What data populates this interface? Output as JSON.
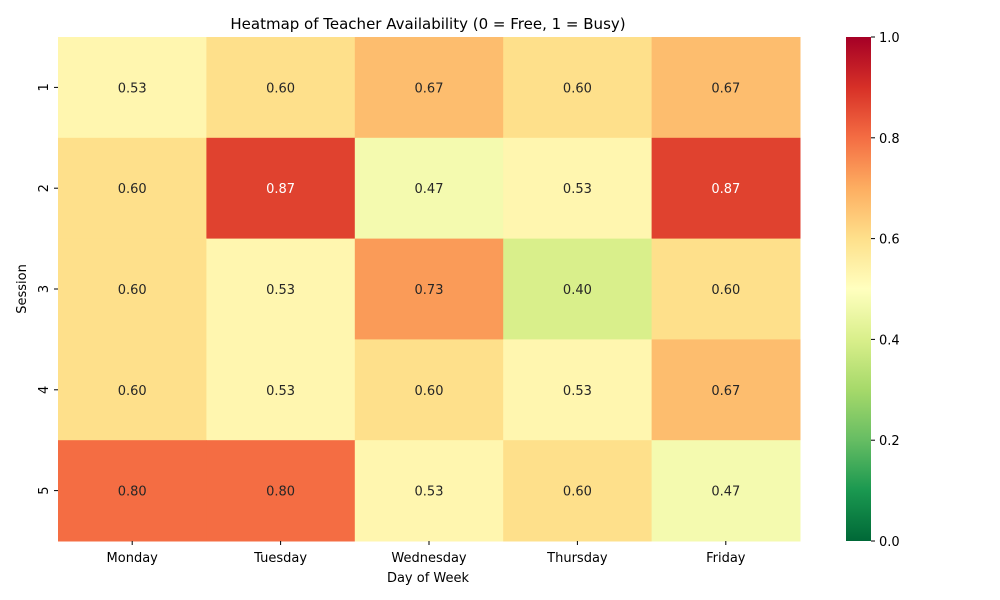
{
  "chart_data": {
    "type": "heatmap",
    "title": "Heatmap of Teacher Availability (0 = Free, 1 = Busy)",
    "xlabel": "Day of Week",
    "ylabel": "Session",
    "x_categories": [
      "Monday",
      "Tuesday",
      "Wednesday",
      "Thursday",
      "Friday"
    ],
    "y_categories": [
      "1",
      "2",
      "3",
      "4",
      "5"
    ],
    "values": [
      [
        0.53,
        0.6,
        0.67,
        0.6,
        0.67
      ],
      [
        0.6,
        0.87,
        0.47,
        0.53,
        0.87
      ],
      [
        0.6,
        0.53,
        0.73,
        0.4,
        0.6
      ],
      [
        0.6,
        0.53,
        0.6,
        0.53,
        0.67
      ],
      [
        0.8,
        0.8,
        0.53,
        0.6,
        0.47
      ]
    ],
    "value_labels": [
      [
        "0.53",
        "0.60",
        "0.67",
        "0.60",
        "0.67"
      ],
      [
        "0.60",
        "0.87",
        "0.47",
        "0.53",
        "0.87"
      ],
      [
        "0.60",
        "0.53",
        "0.73",
        "0.40",
        "0.60"
      ],
      [
        "0.60",
        "0.53",
        "0.60",
        "0.53",
        "0.67"
      ],
      [
        "0.80",
        "0.80",
        "0.53",
        "0.60",
        "0.47"
      ]
    ],
    "colorbar": {
      "range": [
        0,
        1
      ],
      "ticks": [
        "0.0",
        "0.2",
        "0.4",
        "0.6",
        "0.8",
        "1.0"
      ],
      "colormap": "RdYlGn_r"
    }
  }
}
